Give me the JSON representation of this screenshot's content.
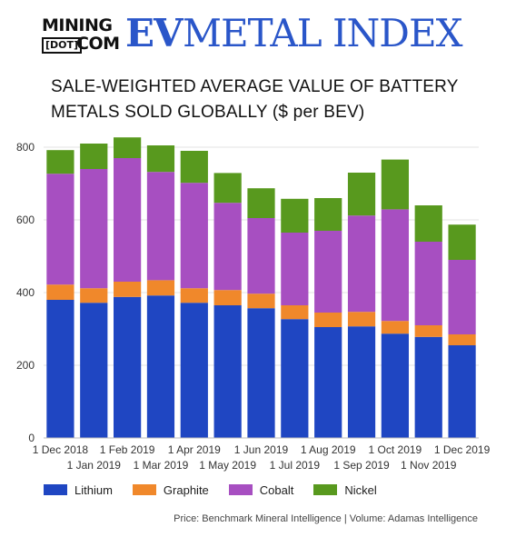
{
  "logo": {
    "mining": "MINING",
    "dot": "[DOT]",
    "com": "COM",
    "ev": "EV",
    "metal_index": "METAL INDEX"
  },
  "colors": {
    "Lithium": "#1f46c2",
    "Graphite": "#f0882b",
    "Cobalt": "#a74fc1",
    "Nickel": "#58991e",
    "logo_blue": "#2a56c9"
  },
  "chart_data": {
    "type": "bar",
    "stacked": true,
    "title_line1": "SALE-WEIGHTED AVERAGE VALUE OF BATTERY",
    "title_line2": "METALS SOLD GLOBALLY ($ per BEV)",
    "categories": [
      "1 Dec 2018",
      "1 Jan 2019",
      "1 Feb 2019",
      "1 Mar 2019",
      "1 Apr 2019",
      "1 May 2019",
      "1 Jun 2019",
      "1 Jul 2019",
      "1 Aug 2019",
      "1 Sep 2019",
      "1 Oct 2019",
      "1 Nov 2019",
      "1 Dec 2019"
    ],
    "yticks": [
      0,
      200,
      400,
      600,
      800
    ],
    "ylim": [
      0,
      830
    ],
    "grid": true,
    "series": [
      {
        "name": "Lithium",
        "values": [
          380,
          372,
          388,
          392,
          372,
          365,
          357,
          327,
          305,
          307,
          287,
          278,
          255
        ]
      },
      {
        "name": "Graphite",
        "values": [
          42,
          40,
          42,
          42,
          40,
          42,
          40,
          38,
          40,
          40,
          35,
          32,
          30
        ]
      },
      {
        "name": "Cobalt",
        "values": [
          305,
          328,
          340,
          298,
          290,
          240,
          208,
          200,
          225,
          265,
          307,
          230,
          205
        ]
      },
      {
        "name": "Nickel",
        "values": [
          65,
          70,
          57,
          73,
          88,
          82,
          82,
          93,
          90,
          118,
          137,
          100,
          97
        ]
      }
    ],
    "legend_position": "bottom"
  },
  "source": "Price: Benchmark Mineral Intelligence | Volume: Adamas Intelligence"
}
